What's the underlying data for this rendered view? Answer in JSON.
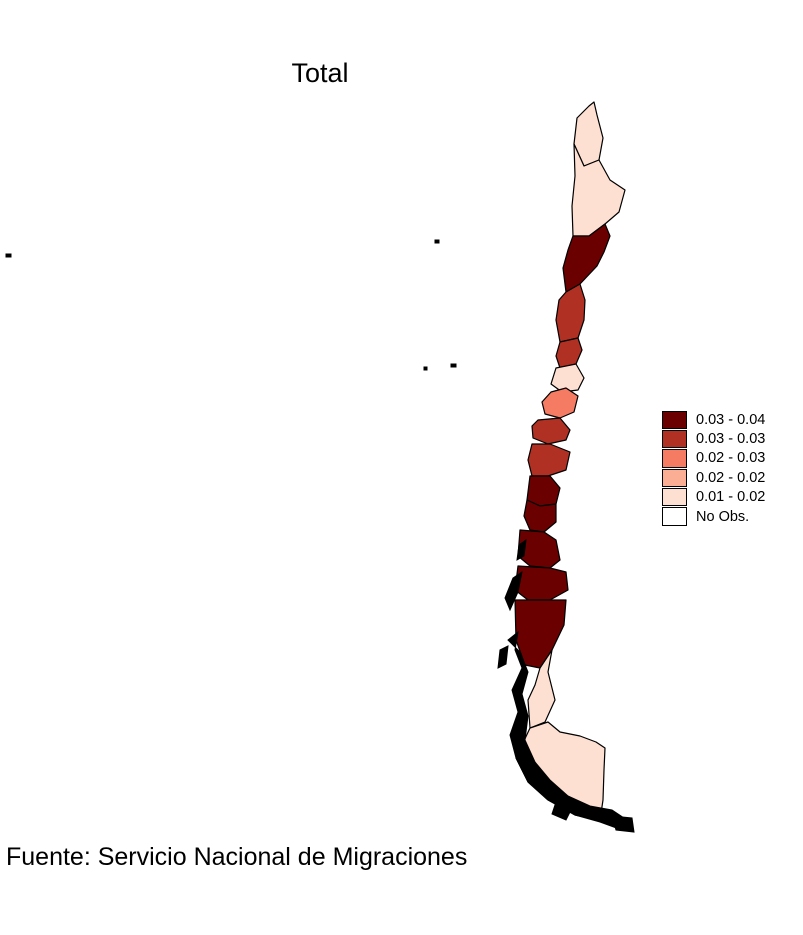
{
  "title": "Total",
  "legend": {
    "items": [
      {
        "label": "0.03 - 0.04",
        "color": "#6b0000"
      },
      {
        "label": "0.03 - 0.03",
        "color": "#b03024"
      },
      {
        "label": "0.02 - 0.03",
        "color": "#f57c63"
      },
      {
        "label": "0.02 - 0.02",
        "color": "#fbae94"
      },
      {
        "label": "0.01 - 0.02",
        "color": "#fde0d2"
      },
      {
        "label": "No Obs.",
        "color": "#ffffff"
      }
    ]
  },
  "caption": "Fuente: Servicio Nacional de Migraciones",
  "regions": [
    {
      "name": "Arica y Parinacota",
      "class": "0.01 - 0.02"
    },
    {
      "name": "Tarapacá",
      "class": "0.01 - 0.02"
    },
    {
      "name": "Antofagasta",
      "class": "0.03 - 0.04"
    },
    {
      "name": "Atacama",
      "class": "0.03 - 0.03"
    },
    {
      "name": "Coquimbo",
      "class": "0.03 - 0.03"
    },
    {
      "name": "Valparaíso",
      "class": "0.01 - 0.02"
    },
    {
      "name": "Metropolitana",
      "class": "0.02 - 0.03"
    },
    {
      "name": "O'Higgins",
      "class": "0.03 - 0.03"
    },
    {
      "name": "Maule",
      "class": "0.03 - 0.03"
    },
    {
      "name": "Ñuble",
      "class": "0.03 - 0.04"
    },
    {
      "name": "Biobío",
      "class": "0.03 - 0.04"
    },
    {
      "name": "La Araucanía",
      "class": "0.03 - 0.04"
    },
    {
      "name": "Los Ríos",
      "class": "0.03 - 0.04"
    },
    {
      "name": "Los Lagos",
      "class": "0.03 - 0.04"
    },
    {
      "name": "Aysén",
      "class": "0.01 - 0.02"
    },
    {
      "name": "Magallanes",
      "class": "0.01 - 0.02"
    }
  ]
}
